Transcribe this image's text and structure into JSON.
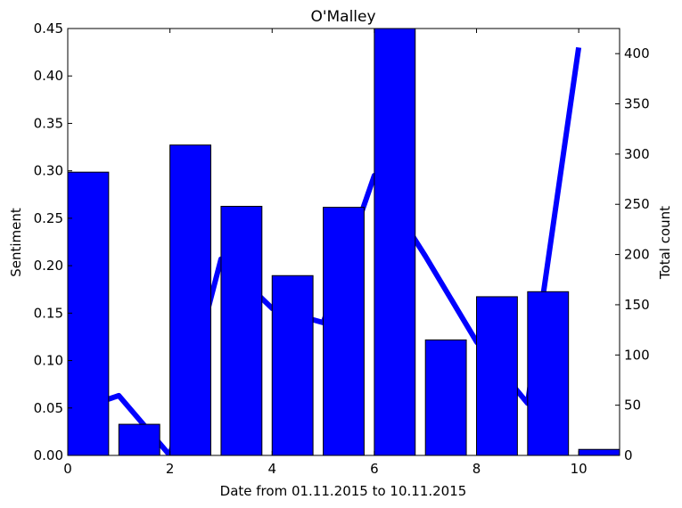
{
  "chart_data": {
    "type": "bar",
    "title": "O'Malley",
    "xlabel": "Date from 01.11.2015 to 10.11.2015",
    "ylabel_left": "Sentiment",
    "ylabel_right": "Total count",
    "xlim": [
      0,
      10.8
    ],
    "ylim_left": [
      0,
      0.45
    ],
    "ylim_right": [
      0,
      425
    ],
    "grid": false,
    "x_ticks": [
      "0",
      "2",
      "4",
      "6",
      "8",
      "10"
    ],
    "y_left_ticks": [
      "0.00",
      "0.05",
      "0.10",
      "0.15",
      "0.20",
      "0.25",
      "0.30",
      "0.35",
      "0.40",
      "0.45"
    ],
    "y_right_ticks": [
      "0",
      "50",
      "100",
      "150",
      "200",
      "250",
      "300",
      "350",
      "400"
    ],
    "bar_series": {
      "axis": "right",
      "color": "#0000ff",
      "bar_width": 0.8,
      "x": [
        0,
        1,
        2,
        3,
        4,
        5,
        6,
        7,
        8,
        9,
        10
      ],
      "values": [
        282,
        31,
        309,
        248,
        179,
        247,
        426,
        115,
        158,
        163,
        6
      ]
    },
    "line_series": {
      "axis": "left",
      "color": "#0000ff",
      "x": [
        0,
        1,
        2,
        3,
        4,
        5,
        6,
        7,
        8,
        9,
        10
      ],
      "values": [
        0.045,
        0.063,
        0.0,
        0.207,
        0.155,
        0.14,
        0.295,
        0.21,
        0.12,
        0.055,
        0.43
      ]
    }
  }
}
